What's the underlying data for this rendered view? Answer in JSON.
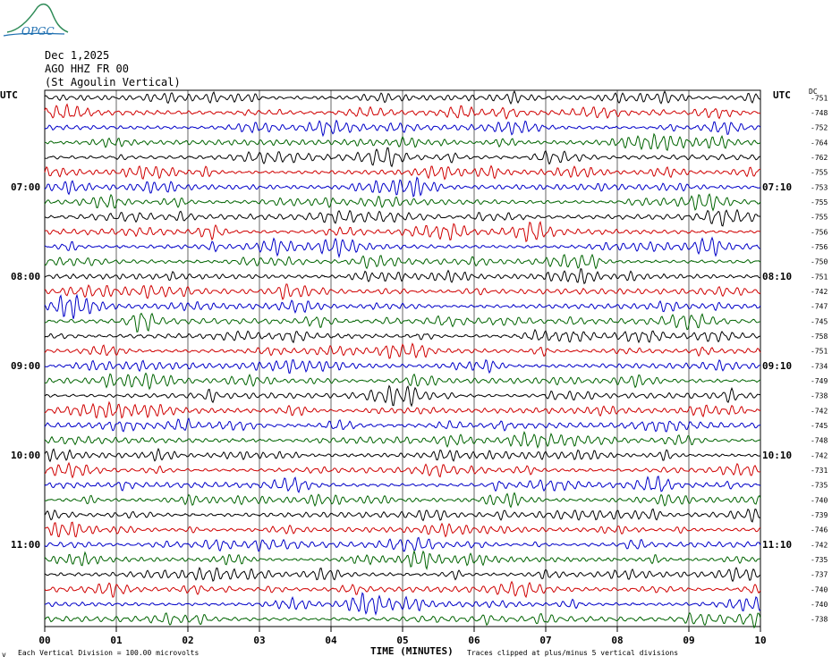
{
  "logo_text": "OPGC",
  "header": {
    "date": "Dec 1,2025",
    "station": "AGO HHZ FR 00",
    "location": "(St Agoulin Vertical)"
  },
  "left_axis": {
    "title": "UTC",
    "labels": [
      "07:00",
      "08:00",
      "09:00",
      "10:00",
      "11:00"
    ]
  },
  "right_axis": {
    "title": "UTC",
    "dc_title": "DC",
    "labels": [
      "07:10",
      "08:10",
      "09:10",
      "10:10",
      "11:10"
    ]
  },
  "footer": {
    "xlabel": "TIME (MINUTES)",
    "scale_note": "Each Vertical Division =  100.00 microvolts",
    "clip_note": "Traces clipped at plus/minus 5 vertical divisions",
    "corner_mark": "v"
  },
  "colors": {
    "trace_cycle": [
      "#000000",
      "#d00000",
      "#0000c8",
      "#006400"
    ],
    "grid": "#000000"
  },
  "chart_data": {
    "type": "line",
    "x_ticks": [
      "00",
      "01",
      "02",
      "03",
      "04",
      "05",
      "06",
      "07",
      "08",
      "09",
      "10"
    ],
    "xlim": [
      0,
      10
    ],
    "xlabel": "TIME (MINUTES)",
    "dc_offsets": [
      -751,
      -748,
      -752,
      -764,
      -762,
      -755,
      -753,
      -755,
      -755,
      -756,
      -756,
      -750,
      -751,
      -742,
      -747,
      -745,
      -758,
      -751,
      -734,
      -749,
      -738,
      -742,
      -745,
      -748,
      -742,
      -731,
      -735,
      -740,
      -739,
      -746,
      -742,
      -735,
      -737,
      -740,
      -740,
      -738
    ]
  }
}
